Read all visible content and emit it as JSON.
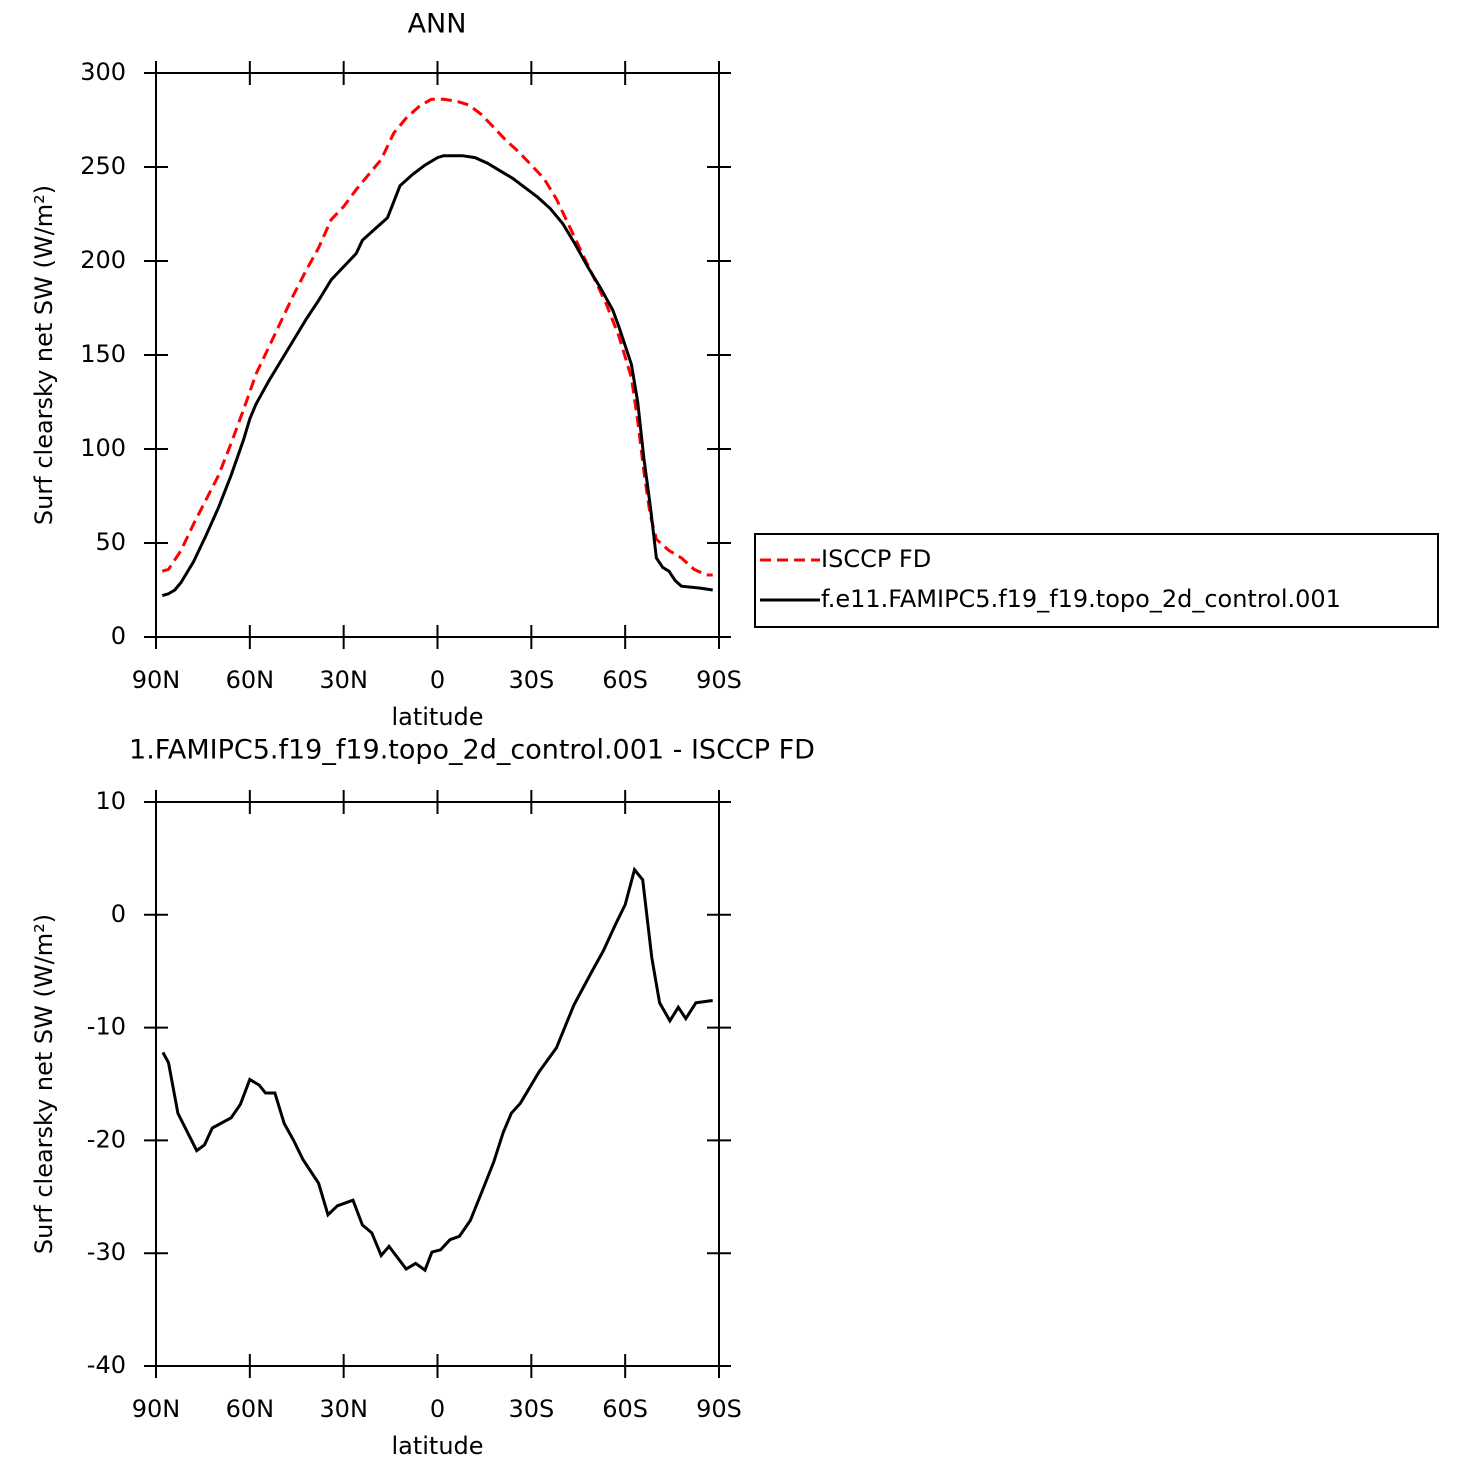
{
  "chart_data": [
    {
      "type": "line",
      "title": "ANN",
      "xlabel": "latitude",
      "ylabel": "Surf clearsky net SW (W/m²)",
      "xlim": [
        90,
        -90
      ],
      "xticks": [
        {
          "value": 90,
          "label": "90N"
        },
        {
          "value": 60,
          "label": "60N"
        },
        {
          "value": 30,
          "label": "30N"
        },
        0,
        {
          "value": -30,
          "label": "30S"
        },
        {
          "value": -60,
          "label": "60S"
        },
        {
          "value": -90,
          "label": "90S"
        }
      ],
      "ylim": [
        0,
        300
      ],
      "yticks": [
        0,
        50,
        100,
        150,
        200,
        250,
        300
      ],
      "legend": "right",
      "series": [
        {
          "name": "ISCCP FD",
          "color": "#ff0000",
          "linestyle": "dashed",
          "x": [
            88,
            86,
            82,
            78,
            74,
            70,
            66,
            62,
            58,
            54,
            50,
            46,
            42,
            38,
            34,
            30,
            26,
            22,
            18,
            14,
            10,
            6,
            2,
            -2,
            -6,
            -10,
            -14,
            -18,
            -22,
            -26,
            -30,
            -34,
            -38,
            -42,
            -46,
            -50,
            -54,
            -58,
            -62,
            -64,
            -66,
            -68,
            -70,
            -74,
            -78,
            -82,
            -86,
            -88
          ],
          "values": [
            35,
            36,
            46,
            60,
            73,
            86,
            103,
            121,
            140,
            154,
            168,
            182,
            195,
            207,
            222,
            229,
            238,
            246,
            254,
            268,
            276,
            282,
            286,
            286,
            285,
            283,
            278,
            271,
            264,
            258,
            251,
            244,
            233,
            219,
            205,
            191,
            177,
            160,
            138,
            115,
            88,
            65,
            52,
            46,
            42,
            36,
            33,
            33
          ]
        },
        {
          "name": "f.e11.FAMIPC5.f19_f19.topo_2d_control.001",
          "color": "#000000",
          "linestyle": "solid",
          "x": [
            88,
            86,
            84,
            82,
            78,
            74,
            70,
            66,
            62,
            60,
            58,
            54,
            50,
            46,
            42,
            38,
            34,
            30,
            26,
            24,
            20,
            16,
            12,
            8,
            4,
            0,
            -2,
            -8,
            -12,
            -16,
            -20,
            -24,
            -28,
            -32,
            -36,
            -40,
            -44,
            -48,
            -52,
            -56,
            -58,
            -62,
            -64,
            -66,
            -68,
            -70,
            -72,
            -74,
            -76,
            -78,
            -84,
            -88
          ],
          "values": [
            22,
            23,
            25,
            29,
            40,
            54,
            69,
            86,
            105,
            116,
            124,
            136,
            147,
            158,
            169,
            179,
            190,
            197,
            204,
            211,
            217,
            223,
            240,
            246,
            251,
            255,
            256,
            256,
            255,
            252,
            248,
            244,
            239,
            234,
            228,
            220,
            209,
            197,
            186,
            174,
            165,
            145,
            125,
            95,
            70,
            42,
            37,
            35,
            30,
            27,
            26,
            25
          ]
        }
      ]
    },
    {
      "type": "line",
      "title": "1.FAMIPC5.f19_f19.topo_2d_control.001 - ISCCP FD",
      "xlabel": "latitude",
      "ylabel": "Surf clearsky net SW (W/m²)",
      "xlim": [
        90,
        -90
      ],
      "xticks": [
        {
          "value": 90,
          "label": "90N"
        },
        {
          "value": 60,
          "label": "60N"
        },
        {
          "value": 30,
          "label": "30N"
        },
        0,
        {
          "value": -30,
          "label": "30S"
        },
        {
          "value": -60,
          "label": "60S"
        },
        {
          "value": -90,
          "label": "90S"
        }
      ],
      "ylim": [
        -40,
        10
      ],
      "yticks": [
        -40,
        -30,
        -20,
        -10,
        0,
        10
      ],
      "series": [
        {
          "color": "#000000",
          "linestyle": "solid",
          "x": [
            87.8,
            86,
            83,
            77,
            74.5,
            72,
            66,
            63,
            60,
            57,
            55,
            52,
            49,
            46,
            43,
            38,
            35,
            32,
            27,
            24,
            21,
            18,
            15.5,
            10,
            7,
            4,
            1.8,
            -1,
            -4,
            -7,
            -10.5,
            -15,
            -18,
            -21,
            -23.6,
            -26.5,
            -32.5,
            -38,
            -43.6,
            -49,
            -53,
            -57,
            -60,
            -63,
            -65.6,
            -68.5,
            -71,
            -74.3,
            -77,
            -79.4,
            -82.6,
            -88
          ],
          "values": [
            -12.2,
            -13.1,
            -17.6,
            -20.9,
            -20.4,
            -18.9,
            -18.0,
            -16.8,
            -14.6,
            -15.1,
            -15.8,
            -15.8,
            -18.5,
            -20.0,
            -21.7,
            -23.8,
            -26.6,
            -25.8,
            -25.3,
            -27.5,
            -28.2,
            -30.2,
            -29.4,
            -31.4,
            -30.9,
            -31.5,
            -29.9,
            -29.7,
            -28.8,
            -28.5,
            -27.1,
            -24.0,
            -21.9,
            -19.3,
            -17.6,
            -16.7,
            -13.9,
            -11.8,
            -8.0,
            -5.2,
            -3.2,
            -0.8,
            0.9,
            4.0,
            3.1,
            -3.8,
            -7.8,
            -9.4,
            -8.2,
            -9.2,
            -7.8,
            -7.6
          ]
        }
      ]
    }
  ]
}
